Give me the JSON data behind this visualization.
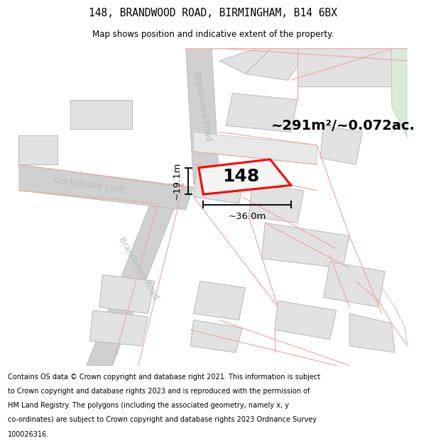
{
  "title_line1": "148, BRANDWOOD ROAD, BIRMINGHAM, B14 6BX",
  "title_line2": "Map shows position and indicative extent of the property.",
  "footer_lines": [
    "Contains OS data © Crown copyright and database right 2021. This information is subject",
    "to Crown copyright and database rights 2023 and is reproduced with the permission of",
    "HM Land Registry. The polygons (including the associated geometry, namely x, y",
    "co-ordinates) are subject to Crown copyright and database rights 2023 Ordnance Survey",
    "100026316."
  ],
  "map_bg": "#ffffff",
  "road_gray": "#d0d0d0",
  "block_fill": "#e2e2e2",
  "block_edge": "#b8b8b8",
  "road_label_color": "#bbbbbb",
  "red_line_color": "#f0aaaa",
  "plot_red": "#ff0000",
  "plot_fill": "#f5f5f5",
  "dim_color": "#111111",
  "area_text": "~291m²/~0.072ac.",
  "width_text": "~36.0m",
  "height_text": "~19.1m",
  "house_number": "148",
  "green_area": "#d8ead8"
}
